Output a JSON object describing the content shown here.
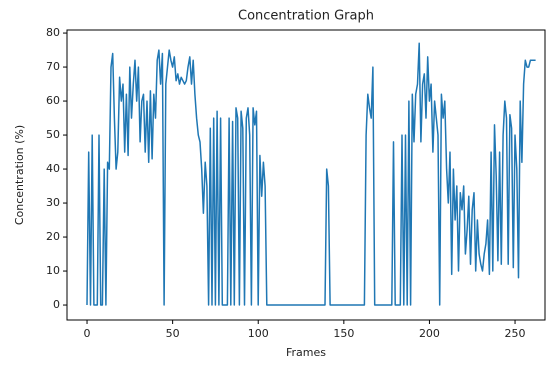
{
  "chart_data": {
    "type": "line",
    "title": "Concentration Graph",
    "xlabel": "Frames",
    "ylabel": "Concentration (%)",
    "color": "#1f77b4",
    "x": [
      0,
      1,
      2,
      3,
      4,
      6,
      7,
      8,
      9,
      10,
      11,
      12,
      13,
      14,
      15,
      16,
      17,
      18,
      19,
      20,
      21,
      22,
      23,
      24,
      25,
      26,
      27,
      28,
      29,
      30,
      31,
      32,
      33,
      34,
      35,
      36,
      37,
      38,
      39,
      40,
      41,
      42,
      43,
      44,
      45,
      46,
      47,
      48,
      49,
      50,
      51,
      52,
      53,
      54,
      55,
      56,
      57,
      58,
      59,
      60,
      61,
      62,
      63,
      64,
      65,
      66,
      67,
      68,
      69,
      70,
      71,
      72,
      73,
      74,
      75,
      76,
      77,
      78,
      79,
      82,
      83,
      84,
      85,
      86,
      87,
      88,
      89,
      90,
      91,
      92,
      93,
      94,
      95,
      96,
      97,
      98,
      99,
      100,
      101,
      102,
      103,
      104,
      105,
      139,
      140,
      141,
      142,
      162,
      163,
      164,
      165,
      166,
      167,
      168,
      178,
      179,
      180,
      183,
      184,
      185,
      186,
      187,
      188,
      189,
      190,
      191,
      192,
      193,
      194,
      195,
      196,
      197,
      198,
      199,
      200,
      201,
      202,
      203,
      204,
      205,
      206,
      207,
      208,
      209,
      210,
      211,
      212,
      213,
      214,
      215,
      216,
      217,
      218,
      219,
      220,
      221,
      222,
      223,
      224,
      225,
      226,
      227,
      228,
      229,
      230,
      231,
      232,
      233,
      234,
      235,
      236,
      237,
      238,
      239,
      240,
      241,
      242,
      243,
      244,
      245,
      246,
      247,
      248,
      249,
      250,
      251,
      252,
      253,
      254,
      255,
      256,
      257,
      258,
      259,
      262
    ],
    "values": [
      0,
      45,
      0,
      50,
      0,
      0,
      50,
      0,
      0,
      40,
      0,
      42,
      40,
      70,
      74,
      55,
      40,
      45,
      67,
      60,
      65,
      45,
      62,
      44,
      70,
      55,
      65,
      72,
      60,
      70,
      48,
      60,
      62,
      45,
      60,
      42,
      63,
      43,
      62,
      55,
      72,
      75,
      65,
      74,
      0,
      65,
      70,
      75,
      72,
      70,
      73,
      66,
      68,
      65,
      67,
      66,
      65,
      66,
      70,
      73,
      65,
      72,
      62,
      55,
      50,
      48,
      40,
      27,
      42,
      35,
      0,
      52,
      0,
      55,
      0,
      57,
      0,
      55,
      0,
      0,
      55,
      0,
      54,
      0,
      58,
      55,
      0,
      57,
      52,
      0,
      55,
      58,
      50,
      0,
      58,
      53,
      57,
      0,
      44,
      32,
      42,
      35,
      0,
      0,
      40,
      35,
      0,
      0,
      50,
      62,
      58,
      55,
      70,
      0,
      0,
      48,
      0,
      0,
      50,
      0,
      50,
      0,
      60,
      0,
      62,
      48,
      62,
      65,
      77,
      48,
      65,
      68,
      55,
      73,
      60,
      65,
      45,
      60,
      55,
      50,
      0,
      62,
      55,
      60,
      40,
      30,
      45,
      9,
      40,
      25,
      35,
      10,
      33,
      28,
      35,
      15,
      22,
      32,
      12,
      28,
      33,
      10,
      25,
      15,
      12,
      10,
      15,
      18,
      25,
      9,
      45,
      10,
      53,
      38,
      13,
      45,
      12,
      50,
      60,
      55,
      12,
      56,
      52,
      11,
      50,
      40,
      8,
      60,
      42,
      65,
      72,
      70,
      70,
      72,
      72
    ],
    "xlim": [
      -11.7,
      267.5
    ],
    "ylim": [
      -4.4,
      80.9
    ],
    "xticks": [
      0,
      50,
      100,
      150,
      200,
      250
    ],
    "yticks": [
      0,
      10,
      20,
      30,
      40,
      50,
      60,
      70,
      80
    ]
  }
}
